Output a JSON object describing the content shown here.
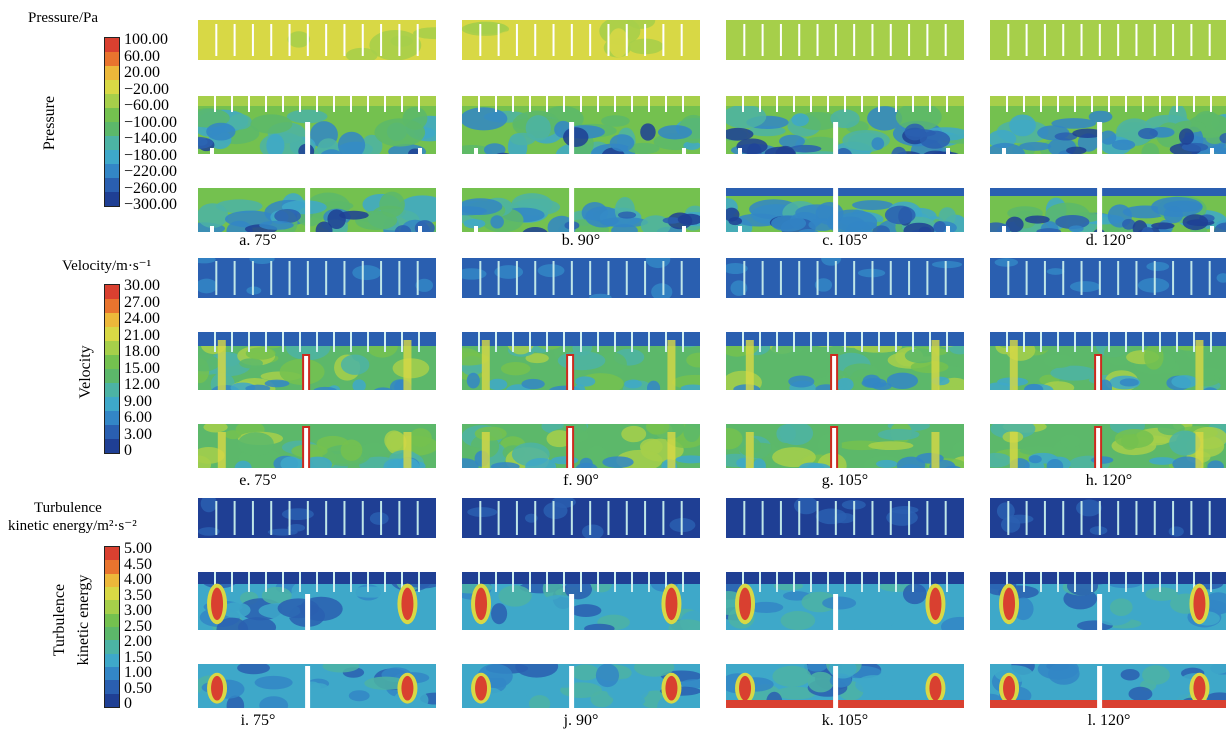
{
  "colormap": [
    "#d94030",
    "#e8742e",
    "#ecb83a",
    "#d8d845",
    "#a6cf4a",
    "#74c14f",
    "#5cb86a",
    "#4cb3a4",
    "#3ea8c9",
    "#3386c6",
    "#2a5fb0",
    "#1f3f94"
  ],
  "sections": [
    {
      "title": "Pressure/Pa",
      "axis_label": "Pressure",
      "ticks": [
        "100.00",
        "60.00",
        "20.00",
        "−20.00",
        "−60.00",
        "−100.00",
        "−140.00",
        "−180.00",
        "−220.00",
        "−260.00",
        "−300.00"
      ],
      "panels": [
        {
          "caption": "a. 75°"
        },
        {
          "caption": "b. 90°"
        },
        {
          "caption": "c. 105°"
        },
        {
          "caption": "d. 120°"
        }
      ]
    },
    {
      "title": "Velocity/m·s⁻¹",
      "axis_label": "Velocity",
      "ticks": [
        "30.00",
        "27.00",
        "24.00",
        "21.00",
        "18.00",
        "15.00",
        "12.00",
        "9.00",
        "6.00",
        "3.00",
        "0"
      ],
      "panels": [
        {
          "caption": "e. 75°"
        },
        {
          "caption": "f. 90°"
        },
        {
          "caption": "g. 105°"
        },
        {
          "caption": "h. 120°"
        }
      ]
    },
    {
      "title": "Turbulence",
      "title2": "kinetic energy/m²·s⁻²",
      "axis_label": "Turbulence",
      "axis_label2": "kinetic energy",
      "ticks": [
        "5.00",
        "4.50",
        "4.00",
        "3.50",
        "3.00",
        "2.50",
        "2.00",
        "1.50",
        "1.00",
        "0.50",
        "0"
      ],
      "panels": [
        {
          "caption": "i. 75°"
        },
        {
          "caption": "j. 90°"
        },
        {
          "caption": "k. 105°"
        },
        {
          "caption": "l. 120°"
        }
      ]
    }
  ]
}
